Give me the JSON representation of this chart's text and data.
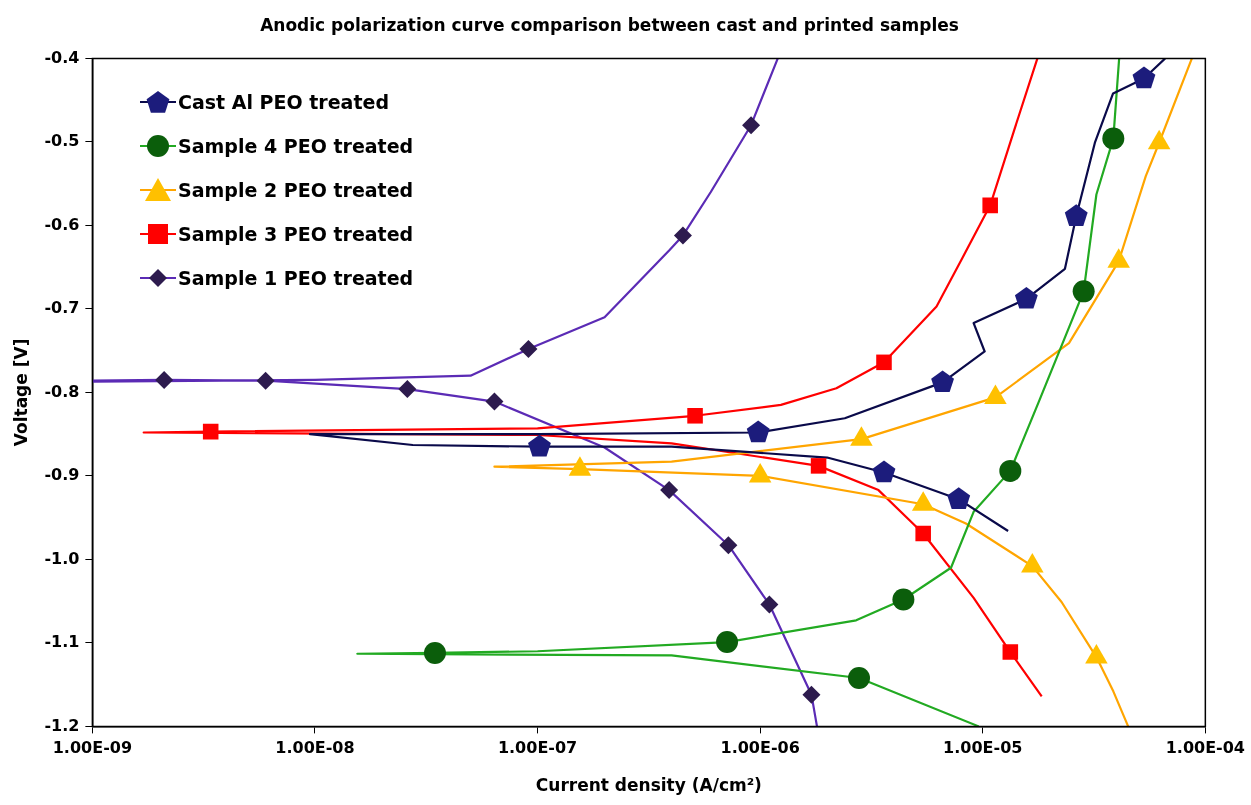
{
  "chart_data": {
    "type": "line",
    "title": "Anodic polarization curve comparison between cast and printed samples",
    "xlabel": "Current density (A/cm²)",
    "ylabel": "Voltage [V]",
    "log": "x",
    "legend": "top left",
    "xlim": [
      1e-09,
      0.0001
    ],
    "xticks": [
      {
        "value": 1e-09,
        "label": "1.00E-09"
      },
      {
        "value": 1e-08,
        "label": "1.00E-08"
      },
      {
        "value": 1e-07,
        "label": "1.00E-07"
      },
      {
        "value": 1e-06,
        "label": "1.00E-06"
      },
      {
        "value": 1e-05,
        "label": "1.00E-05"
      },
      {
        "value": 0.0001,
        "label": "1.00E-04"
      }
    ],
    "ylim": [
      -1.2,
      -0.4
    ],
    "yticks": [
      -1.2,
      -1.1,
      {
        "value": -1,
        "label": "-1.0"
      },
      -0.9,
      -0.8,
      -0.7,
      -0.6,
      -0.5,
      -0.4
    ],
    "series": [
      {
        "type": "line",
        "color": "#0a0a4a",
        "x": [
          1.3e-05,
          7.8e-06,
          3.6e-06,
          2e-06,
          4e-07,
          1.02e-07,
          2.75e-08,
          9.5e-09,
          1e-07,
          9.8e-07,
          2.4e-06,
          6.6e-06,
          1.02e-05,
          9.1e-06,
          1.57e-05,
          2.34e-05,
          2.63e-05,
          3.19e-05,
          3.85e-05,
          5.3e-05,
          6.6e-05
        ],
        "values": [
          -0.966,
          -0.928,
          -0.896,
          -0.878,
          -0.865,
          -0.865,
          -0.863,
          -0.85,
          -0.85,
          -0.848,
          -0.831,
          -0.788,
          -0.751,
          -0.717,
          -0.688,
          -0.652,
          -0.589,
          -0.501,
          -0.442,
          -0.424,
          -0.4
        ]
      },
      {
        "type": "scatter",
        "name": "Cast Al PEO treated",
        "color": "#1c1c7c",
        "x": [
          1.02e-07,
          9.8e-07,
          3.6e-06,
          6.6e-06,
          7.8e-06,
          1.57e-05,
          2.63e-05,
          5.3e-05
        ],
        "values": [
          -0.865,
          -0.848,
          -0.896,
          -0.788,
          -0.928,
          -0.688,
          -0.589,
          -0.424
        ]
      },
      {
        "type": "line",
        "color": "#22aa22",
        "x": [
          9.6e-06,
          2.78e-06,
          4e-07,
          1.55e-08,
          3.46e-08,
          1e-07,
          7.1e-07,
          2.7e-06,
          4.4e-06,
          7.2e-06,
          9.1e-06,
          1.33e-05,
          1.8e-05,
          2.84e-05,
          3.24e-05,
          3.86e-05,
          4.1e-05
        ],
        "values": [
          -1.2,
          -1.142,
          -1.115,
          -1.113,
          -1.112,
          -1.11,
          -1.099,
          -1.073,
          -1.048,
          -1.01,
          -0.943,
          -0.894,
          -0.809,
          -0.679,
          -0.563,
          -0.496,
          -0.4
        ]
      },
      {
        "type": "scatter",
        "name": "Sample 4 PEO treated",
        "color": "#0b5e0b",
        "marker": "circle",
        "x": [
          3.46e-08,
          7.1e-07,
          2.78e-06,
          4.4e-06,
          1.33e-05,
          2.84e-05,
          3.86e-05
        ],
        "values": [
          -1.112,
          -1.099,
          -1.142,
          -1.048,
          -0.894,
          -0.679,
          -0.496
        ]
      },
      {
        "type": "line",
        "color": "#ffa500",
        "x": [
          4.5e-05,
          3.86e-05,
          3.24e-05,
          2.26e-05,
          1.67e-05,
          8.4e-06,
          5.4e-06,
          1e-06,
          1.55e-07,
          6.4e-08,
          4e-07,
          2.85e-06,
          1.14e-05,
          2.44e-05,
          4.08e-05,
          5.4e-05,
          6.2e-05,
          8.7e-05
        ],
        "values": [
          -1.2,
          -1.158,
          -1.117,
          -1.051,
          -1.008,
          -0.957,
          -0.934,
          -0.9,
          -0.892,
          -0.889,
          -0.883,
          -0.856,
          -0.806,
          -0.741,
          -0.643,
          -0.541,
          -0.501,
          -0.4
        ]
      },
      {
        "type": "scatter",
        "name": "Sample 2 PEO treated",
        "color": "#ffc000",
        "marker": "triangle",
        "x": [
          1.55e-07,
          1e-06,
          2.85e-06,
          5.4e-06,
          1.14e-05,
          1.67e-05,
          3.24e-05,
          4.08e-05,
          6.2e-05
        ],
        "values": [
          -0.892,
          -0.9,
          -0.856,
          -0.934,
          -0.806,
          -1.008,
          -1.117,
          -0.643,
          -0.501
        ]
      },
      {
        "type": "line",
        "color": "#ff0000",
        "x": [
          1.84e-05,
          1.33e-05,
          9.1e-06,
          5.4e-06,
          3.4e-06,
          1.83e-06,
          4e-07,
          1e-07,
          1.7e-09,
          3.4e-09,
          1e-07,
          5.1e-07,
          1.24e-06,
          2.2e-06,
          3.6e-06,
          6.2e-06,
          8.1e-06,
          1.08e-05,
          1.38e-05,
          1.76e-05
        ],
        "values": [
          -1.164,
          -1.111,
          -1.046,
          -0.969,
          -0.917,
          -0.888,
          -0.861,
          -0.851,
          -0.848,
          -0.847,
          -0.843,
          -0.828,
          -0.815,
          -0.795,
          -0.764,
          -0.697,
          -0.639,
          -0.576,
          -0.487,
          -0.4
        ]
      },
      {
        "type": "scatter",
        "name": "Sample 3 PEO treated",
        "color": "#ff0000",
        "marker": "square",
        "x": [
          3.4e-09,
          5.1e-07,
          1.83e-06,
          3.6e-06,
          5.4e-06,
          1.08e-05,
          1.33e-05
        ],
        "values": [
          -0.847,
          -0.828,
          -0.888,
          -0.764,
          -0.969,
          -0.576,
          -1.111
        ]
      },
      {
        "type": "line",
        "color": "#5b2bb5",
        "x": [
          1.8e-06,
          1.7e-06,
          1.1e-06,
          7.2e-07,
          3.9e-07,
          2e-07,
          6.4e-08,
          2.6e-08,
          6e-09,
          2.1e-09,
          1e-09,
          1e-09,
          1e-08,
          5e-08,
          9.1e-08,
          2e-07,
          3.9e-07,
          4.5e-07,
          6e-07,
          9.1e-07,
          1.2e-06
        ],
        "values": [
          -1.2,
          -1.162,
          -1.054,
          -0.983,
          -0.917,
          -0.866,
          -0.811,
          -0.796,
          -0.786,
          -0.785,
          -0.786,
          -0.787,
          -0.785,
          -0.78,
          -0.748,
          -0.71,
          -0.63,
          -0.612,
          -0.56,
          -0.48,
          -0.4
        ]
      },
      {
        "type": "scatter",
        "name": "Sample 1 PEO treated",
        "color": "#2d1b4e",
        "marker": "diamond",
        "x": [
          2.1e-09,
          6e-09,
          2.6e-08,
          6.4e-08,
          9.1e-08,
          3.9e-07,
          4.5e-07,
          7.2e-07,
          9.1e-07,
          1.1e-06,
          1.7e-06
        ],
        "values": [
          -0.785,
          -0.786,
          -0.796,
          -0.811,
          -0.748,
          -0.917,
          -0.612,
          -0.983,
          -0.48,
          -1.054,
          -1.162
        ]
      }
    ]
  }
}
